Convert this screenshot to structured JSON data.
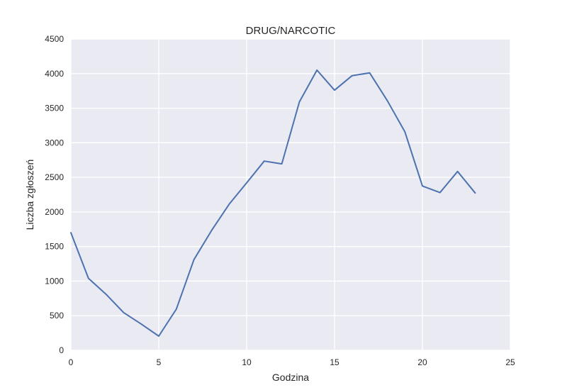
{
  "chart_data": {
    "type": "line",
    "title": "DRUG/NARCOTIC",
    "xlabel": "Godzina",
    "ylabel": "Liczba zgłoszeń",
    "xlim": [
      0,
      25
    ],
    "ylim": [
      0,
      4500
    ],
    "xticks": [
      0,
      5,
      10,
      15,
      20,
      25
    ],
    "yticks": [
      0,
      500,
      1000,
      1500,
      2000,
      2500,
      3000,
      3500,
      4000,
      4500
    ],
    "grid": true,
    "background_color": "#EAEAF2",
    "grid_color": "#FFFFFF",
    "series": [
      {
        "name": "DRUG/NARCOTIC",
        "color": "#4C72B0",
        "x": [
          0,
          1,
          2,
          3,
          4,
          5,
          6,
          7,
          8,
          9,
          10,
          11,
          12,
          13,
          14,
          15,
          16,
          17,
          18,
          19,
          20,
          21,
          22,
          23
        ],
        "values": [
          1700,
          1040,
          810,
          545,
          380,
          205,
          595,
          1310,
          1730,
          2110,
          2420,
          2735,
          2695,
          3590,
          4050,
          3760,
          3970,
          4010,
          3610,
          3160,
          2375,
          2280,
          2585,
          2275
        ]
      }
    ]
  }
}
